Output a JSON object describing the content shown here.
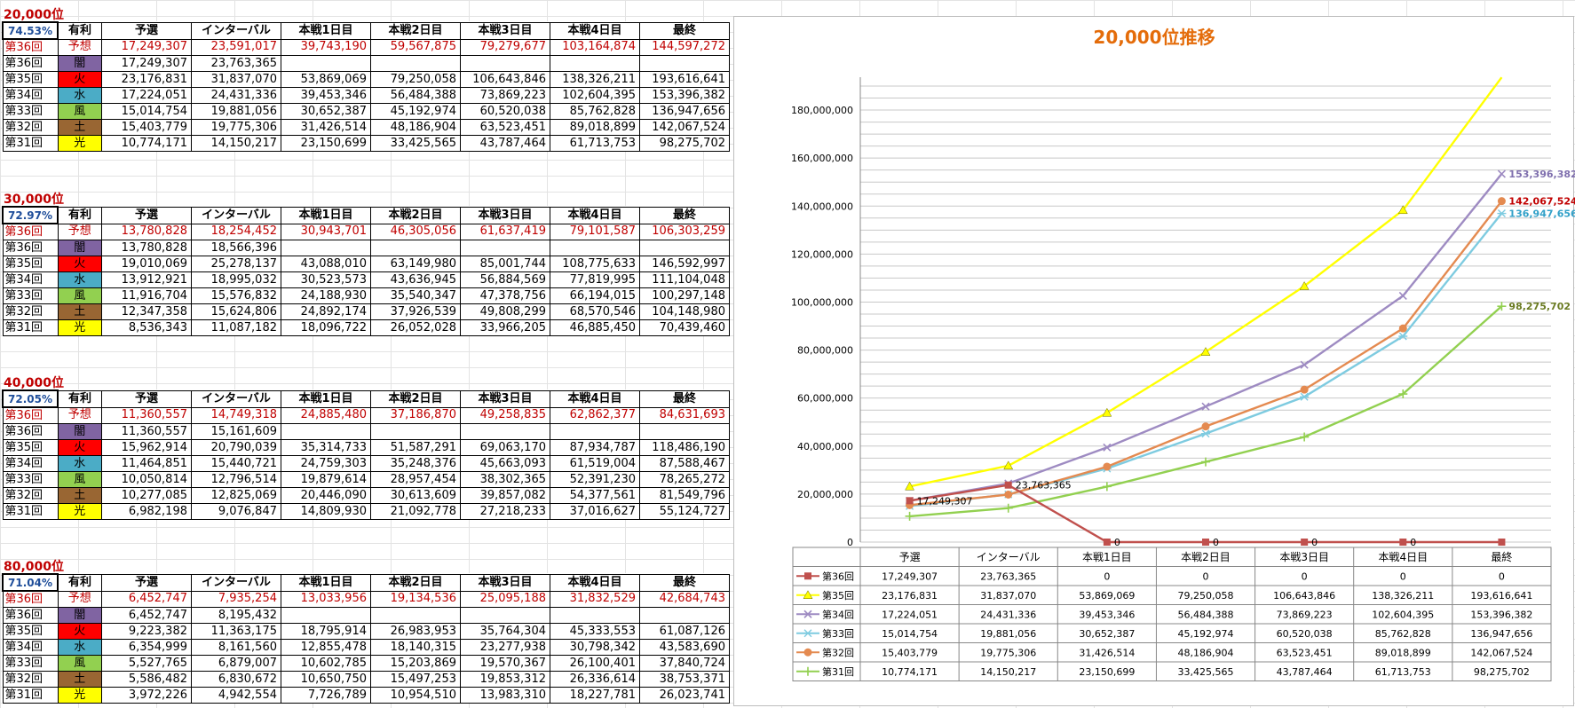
{
  "col_headers": [
    "有利",
    "予選",
    "インターバル",
    "本戦1日目",
    "本戦2日目",
    "本戦3日目",
    "本戦4日目",
    "最終"
  ],
  "adv_colors": {
    "闇": "#8064a2",
    "火": "#ff0000",
    "水": "#4bacc6",
    "風": "#92d050",
    "土": "#996633",
    "光": "#ffff00",
    "予想": "#ffffff"
  },
  "blocks": [
    {
      "title": "20,000位",
      "pct": "74.53%",
      "rows": [
        {
          "label": "第36回",
          "adv": "予想",
          "pred": true,
          "values": [
            "17,249,307",
            "23,591,017",
            "39,743,190",
            "59,567,875",
            "79,279,677",
            "103,164,874",
            "144,597,272"
          ]
        },
        {
          "label": "第36回",
          "adv": "闇",
          "pred": false,
          "values": [
            "17,249,307",
            "23,763,365",
            "",
            "",
            "",
            "",
            ""
          ]
        },
        {
          "label": "第35回",
          "adv": "火",
          "pred": false,
          "values": [
            "23,176,831",
            "31,837,070",
            "53,869,069",
            "79,250,058",
            "106,643,846",
            "138,326,211",
            "193,616,641"
          ]
        },
        {
          "label": "第34回",
          "adv": "水",
          "pred": false,
          "values": [
            "17,224,051",
            "24,431,336",
            "39,453,346",
            "56,484,388",
            "73,869,223",
            "102,604,395",
            "153,396,382"
          ]
        },
        {
          "label": "第33回",
          "adv": "風",
          "pred": false,
          "values": [
            "15,014,754",
            "19,881,056",
            "30,652,387",
            "45,192,974",
            "60,520,038",
            "85,762,828",
            "136,947,656"
          ]
        },
        {
          "label": "第32回",
          "adv": "土",
          "pred": false,
          "values": [
            "15,403,779",
            "19,775,306",
            "31,426,514",
            "48,186,904",
            "63,523,451",
            "89,018,899",
            "142,067,524"
          ]
        },
        {
          "label": "第31回",
          "adv": "光",
          "pred": false,
          "values": [
            "10,774,171",
            "14,150,217",
            "23,150,699",
            "33,425,565",
            "43,787,464",
            "61,713,753",
            "98,275,702"
          ]
        }
      ]
    },
    {
      "title": "30,000位",
      "pct": "72.97%",
      "rows": [
        {
          "label": "第36回",
          "adv": "予想",
          "pred": true,
          "values": [
            "13,780,828",
            "18,254,452",
            "30,943,701",
            "46,305,056",
            "61,637,419",
            "79,101,587",
            "106,303,259"
          ]
        },
        {
          "label": "第36回",
          "adv": "闇",
          "pred": false,
          "values": [
            "13,780,828",
            "18,566,396",
            "",
            "",
            "",
            "",
            ""
          ]
        },
        {
          "label": "第35回",
          "adv": "火",
          "pred": false,
          "values": [
            "19,010,069",
            "25,278,137",
            "43,088,010",
            "63,149,980",
            "85,001,744",
            "108,775,633",
            "146,592,997"
          ]
        },
        {
          "label": "第34回",
          "adv": "水",
          "pred": false,
          "values": [
            "13,912,921",
            "18,995,032",
            "30,523,573",
            "43,636,945",
            "56,884,569",
            "77,819,995",
            "111,104,048"
          ]
        },
        {
          "label": "第33回",
          "adv": "風",
          "pred": false,
          "values": [
            "11,916,704",
            "15,576,832",
            "24,188,930",
            "35,540,347",
            "47,378,756",
            "66,194,015",
            "100,297,148"
          ]
        },
        {
          "label": "第32回",
          "adv": "土",
          "pred": false,
          "values": [
            "12,347,358",
            "15,624,806",
            "24,892,174",
            "37,926,539",
            "49,808,299",
            "68,570,546",
            "104,148,980"
          ]
        },
        {
          "label": "第31回",
          "adv": "光",
          "pred": false,
          "values": [
            "8,536,343",
            "11,087,182",
            "18,096,722",
            "26,052,028",
            "33,966,205",
            "46,885,450",
            "70,439,460"
          ]
        }
      ]
    },
    {
      "title": "40,000位",
      "pct": "72.05%",
      "rows": [
        {
          "label": "第36回",
          "adv": "予想",
          "pred": true,
          "values": [
            "11,360,557",
            "14,749,318",
            "24,885,480",
            "37,186,870",
            "49,258,835",
            "62,862,377",
            "84,631,693"
          ]
        },
        {
          "label": "第36回",
          "adv": "闇",
          "pred": false,
          "values": [
            "11,360,557",
            "15,161,609",
            "",
            "",
            "",
            "",
            ""
          ]
        },
        {
          "label": "第35回",
          "adv": "火",
          "pred": false,
          "values": [
            "15,962,914",
            "20,790,039",
            "35,314,733",
            "51,587,291",
            "69,063,170",
            "87,934,787",
            "118,486,190"
          ]
        },
        {
          "label": "第34回",
          "adv": "水",
          "pred": false,
          "values": [
            "11,464,851",
            "15,440,721",
            "24,759,303",
            "35,248,376",
            "45,663,093",
            "61,519,004",
            "87,588,467"
          ]
        },
        {
          "label": "第33回",
          "adv": "風",
          "pred": false,
          "values": [
            "10,050,814",
            "12,796,514",
            "19,879,614",
            "28,957,454",
            "38,302,365",
            "52,391,230",
            "78,265,272"
          ]
        },
        {
          "label": "第32回",
          "adv": "土",
          "pred": false,
          "values": [
            "10,277,085",
            "12,825,069",
            "20,446,090",
            "30,613,609",
            "39,857,082",
            "54,377,561",
            "81,549,796"
          ]
        },
        {
          "label": "第31回",
          "adv": "光",
          "pred": false,
          "values": [
            "6,982,198",
            "9,076,847",
            "14,809,930",
            "21,092,778",
            "27,218,233",
            "37,016,627",
            "55,124,727"
          ]
        }
      ]
    },
    {
      "title": "80,000位",
      "pct": "71.04%",
      "rows": [
        {
          "label": "第36回",
          "adv": "予想",
          "pred": true,
          "values": [
            "6,452,747",
            "7,935,254",
            "13,033,956",
            "19,134,536",
            "25,095,188",
            "31,832,529",
            "42,684,743"
          ]
        },
        {
          "label": "第36回",
          "adv": "闇",
          "pred": false,
          "values": [
            "6,452,747",
            "8,195,432",
            "",
            "",
            "",
            "",
            ""
          ]
        },
        {
          "label": "第35回",
          "adv": "火",
          "pred": false,
          "values": [
            "9,223,382",
            "11,363,175",
            "18,795,914",
            "26,983,953",
            "35,764,304",
            "45,333,553",
            "61,087,126"
          ]
        },
        {
          "label": "第34回",
          "adv": "水",
          "pred": false,
          "values": [
            "6,354,999",
            "8,161,560",
            "12,855,478",
            "18,140,315",
            "23,277,938",
            "30,798,342",
            "43,583,690"
          ]
        },
        {
          "label": "第33回",
          "adv": "風",
          "pred": false,
          "values": [
            "5,527,765",
            "6,879,007",
            "10,602,785",
            "15,203,869",
            "19,570,367",
            "26,100,401",
            "37,840,724"
          ]
        },
        {
          "label": "第32回",
          "adv": "土",
          "pred": false,
          "values": [
            "5,586,482",
            "6,830,672",
            "10,650,750",
            "15,497,253",
            "19,853,312",
            "26,336,614",
            "38,753,371"
          ]
        },
        {
          "label": "第31回",
          "adv": "光",
          "pred": false,
          "values": [
            "3,972,226",
            "4,942,554",
            "7,726,789",
            "10,954,510",
            "13,983,310",
            "18,227,781",
            "26,023,741"
          ]
        }
      ]
    }
  ],
  "chart_data": {
    "type": "line",
    "title": "20,000位推移",
    "categories": [
      "予選",
      "インターバル",
      "本戦1日目",
      "本戦2日目",
      "本戦3日目",
      "本戦4日目",
      "最終"
    ],
    "ylim": [
      0,
      190000000
    ],
    "yticks": [
      "0",
      "20,000,000",
      "40,000,000",
      "60,000,000",
      "80,000,000",
      "100,000,000",
      "120,000,000",
      "140,000,000",
      "160,000,000",
      "180,000,000"
    ],
    "grid": true,
    "legend": "data-table-below",
    "series": [
      {
        "name": "第36回",
        "color": "#c0504d",
        "marker": "square",
        "values": [
          17249307,
          23763365,
          0,
          0,
          0,
          0,
          0
        ],
        "display": [
          "17,249,307",
          "23,763,365",
          "0",
          "0",
          "0",
          "0",
          "0"
        ],
        "label_text": {
          "0": "17,249,307",
          "1": "23,763,365",
          "2": "0",
          "3": "0",
          "4": "0",
          "5": "0"
        }
      },
      {
        "name": "第35回",
        "color": "#ffff00",
        "marker": "triangle",
        "values": [
          23176831,
          31837070,
          53869069,
          79250058,
          106643846,
          138326211,
          193616641
        ],
        "display": [
          "23,176,831",
          "31,837,070",
          "53,869,069",
          "79,250,058",
          "106,643,846",
          "138,326,211",
          "193,616,641"
        ]
      },
      {
        "name": "第34回",
        "color": "#9e8bc2",
        "marker": "x",
        "values": [
          17224051,
          24431336,
          39453346,
          56484388,
          73869223,
          102604395,
          153396382
        ],
        "display": [
          "17,224,051",
          "24,431,336",
          "39,453,346",
          "56,484,388",
          "73,869,223",
          "102,604,395",
          "153,396,382"
        ],
        "end_label": "153,396,382"
      },
      {
        "name": "第33回",
        "color": "#7ecbe0",
        "marker": "star",
        "values": [
          15014754,
          19881056,
          30652387,
          45192974,
          60520038,
          85762828,
          136947656
        ],
        "display": [
          "15,014,754",
          "19,881,056",
          "30,652,387",
          "45,192,974",
          "60,520,038",
          "85,762,828",
          "136,947,656"
        ],
        "end_label": "136,947,656"
      },
      {
        "name": "第32回",
        "color": "#e48a50",
        "marker": "circle",
        "values": [
          15403779,
          19775306,
          31426514,
          48186904,
          63523451,
          89018899,
          142067524
        ],
        "display": [
          "15,403,779",
          "19,775,306",
          "31,426,514",
          "48,186,904",
          "63,523,451",
          "89,018,899",
          "142,067,524"
        ],
        "end_label": "142,067,524"
      },
      {
        "name": "第31回",
        "color": "#92d050",
        "marker": "plus",
        "values": [
          10774171,
          14150217,
          23150699,
          33425565,
          43787464,
          61713753,
          98275702
        ],
        "display": [
          "10,774,171",
          "14,150,217",
          "23,150,699",
          "33,425,565",
          "43,787,464",
          "61,713,753",
          "98,275,702"
        ],
        "end_label": "98,275,702"
      }
    ]
  },
  "end_label_colors": {
    "第34回": "#7f6fae",
    "第33回": "#31a0c8",
    "第32回": "#c00000",
    "第31回": "#6a7b22"
  }
}
